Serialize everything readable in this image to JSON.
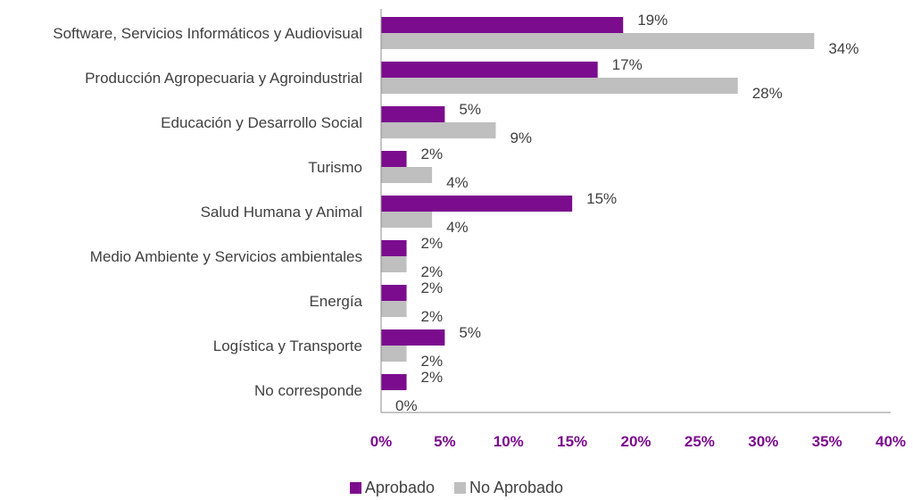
{
  "chart_data": {
    "type": "bar",
    "orientation": "horizontal",
    "categories": [
      "Software, Servicios Informáticos y Audiovisual",
      "Producción Agropecuaria y Agroindustrial",
      "Educación y Desarrollo Social",
      "Turismo",
      "Salud Humana y Animal",
      "Medio Ambiente y Servicios ambientales",
      "Energía",
      "Logística y Transporte",
      "No corresponde"
    ],
    "series": [
      {
        "name": "Aprobado",
        "color": "#7B0C8E",
        "values": [
          19,
          17,
          5,
          2,
          15,
          2,
          2,
          5,
          2
        ],
        "labels": [
          "19%",
          "17%",
          "5%",
          "2%",
          "15%",
          "2%",
          "2%",
          "5%",
          "2%"
        ]
      },
      {
        "name": "No Aprobado",
        "color": "#BFBFBF",
        "values": [
          34,
          28,
          9,
          4,
          4,
          2,
          2,
          2,
          0
        ],
        "labels": [
          "34%",
          "28%",
          "9%",
          "4%",
          "4%",
          "2%",
          "2%",
          "2%",
          "0%"
        ]
      }
    ],
    "xlim": [
      0,
      40
    ],
    "xticks": [
      "0%",
      "5%",
      "10%",
      "15%",
      "20%",
      "25%",
      "30%",
      "35%",
      "40%"
    ],
    "tick_color": "#7B0C8E",
    "grid": false,
    "legend_position": "bottom"
  }
}
